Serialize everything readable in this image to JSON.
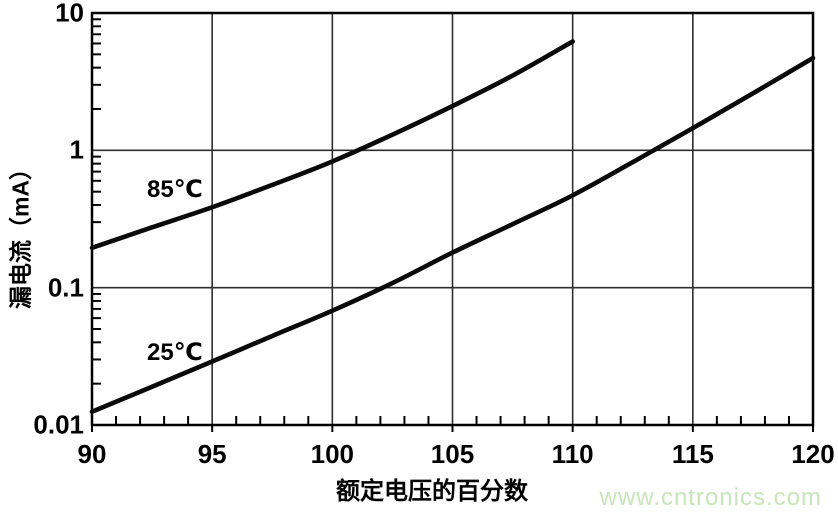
{
  "chart_data": {
    "type": "line",
    "title": "",
    "xlabel": "额定电压的百分数",
    "ylabel": "漏电流（mA）",
    "x_ticks": [
      90,
      95,
      100,
      105,
      110,
      115,
      120
    ],
    "x_minor_step": 1,
    "y_ticks": [
      10,
      1,
      0.1,
      0.01
    ],
    "y_tick_labels": [
      "10",
      "1",
      "0.1",
      "0.01"
    ],
    "xlim": [
      90,
      120
    ],
    "ylim": [
      0.01,
      10
    ],
    "y_scale": "log",
    "grid": "major",
    "legend_position": "inline-labels",
    "colors": {
      "curve": "#0a0a0a",
      "grid": "#2e2e2e",
      "frame": "#000000"
    },
    "series": [
      {
        "name": "85℃",
        "points": [
          [
            90,
            0.195
          ],
          [
            92.5,
            0.275
          ],
          [
            95,
            0.385
          ],
          [
            97.5,
            0.56
          ],
          [
            100,
            0.83
          ],
          [
            102.5,
            1.3
          ],
          [
            105,
            2.1
          ],
          [
            107.5,
            3.5
          ],
          [
            110,
            6.2
          ]
        ]
      },
      {
        "name": "25℃",
        "points": [
          [
            90,
            0.0125
          ],
          [
            92.5,
            0.019
          ],
          [
            95,
            0.029
          ],
          [
            97.5,
            0.0445
          ],
          [
            100,
            0.068
          ],
          [
            102.5,
            0.108
          ],
          [
            105,
            0.18
          ],
          [
            107.5,
            0.29
          ],
          [
            110,
            0.47
          ],
          [
            112.5,
            0.82
          ],
          [
            115,
            1.45
          ],
          [
            117.5,
            2.6
          ],
          [
            120,
            4.7
          ]
        ]
      }
    ]
  },
  "watermark": {
    "text": "www.cntronics.com",
    "color": "#c8e5ba"
  }
}
